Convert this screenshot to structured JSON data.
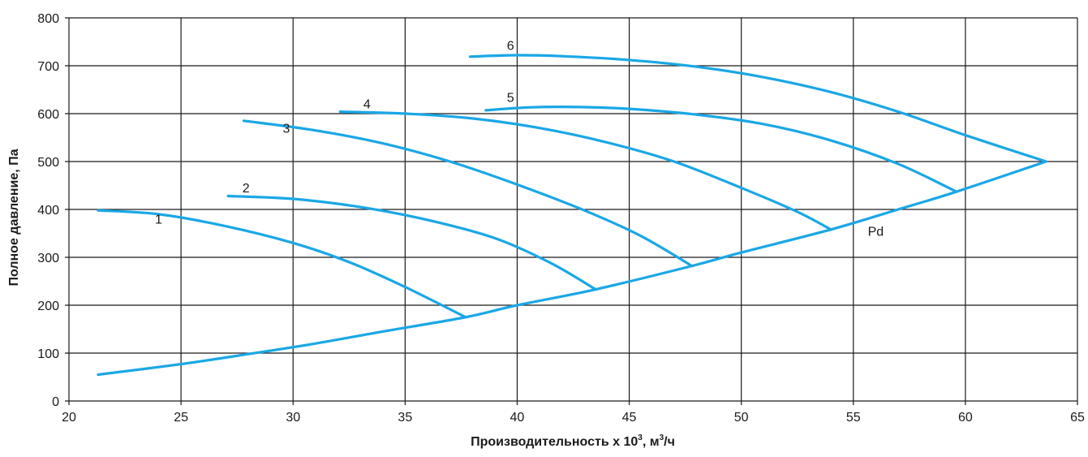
{
  "chart_data": {
    "type": "line",
    "xlabel": {
      "prefix": "Производительность х 10",
      "superscript": "3",
      "suffix_before_sup": ", м",
      "superscript2": "3",
      "suffix": "/ч"
    },
    "ylabel": "Полное давление, Па",
    "xlim": [
      20,
      65
    ],
    "ylim": [
      0,
      800
    ],
    "x_ticks": [
      "20",
      "25",
      "30",
      "35",
      "40",
      "45",
      "50",
      "55",
      "60",
      "65"
    ],
    "y_ticks": [
      "0",
      "100",
      "200",
      "300",
      "400",
      "500",
      "600",
      "700",
      "800"
    ],
    "grid": true,
    "line_color": "#1aa7e6",
    "series": [
      {
        "name": "1",
        "x": [
          21.3,
          24.0,
          27.0,
          30.0,
          32.5,
          35.0,
          37.7
        ],
        "y": [
          398,
          390,
          365,
          330,
          290,
          238,
          175
        ]
      },
      {
        "name": "2",
        "x": [
          27.1,
          30.0,
          33.0,
          36.0,
          39.0,
          41.5,
          43.5
        ],
        "y": [
          428,
          422,
          405,
          378,
          340,
          288,
          233
        ]
      },
      {
        "name": "3",
        "x": [
          27.8,
          31.0,
          34.0,
          37.0,
          40.0,
          43.0,
          45.5,
          47.8
        ],
        "y": [
          585,
          565,
          538,
          500,
          452,
          398,
          345,
          282
        ]
      },
      {
        "name": "4",
        "x": [
          32.1,
          35.0,
          38.0,
          41.0,
          44.0,
          47.0,
          50.0,
          52.5,
          54.0
        ],
        "y": [
          604,
          600,
          590,
          570,
          540,
          500,
          445,
          395,
          358
        ]
      },
      {
        "name": "5",
        "x": [
          38.6,
          40.5,
          42.5,
          45.0,
          48.0,
          51.0,
          54.0,
          57.0,
          59.6
        ],
        "y": [
          607,
          613,
          614,
          610,
          598,
          578,
          544,
          495,
          437
        ]
      },
      {
        "name": "6",
        "x": [
          37.9,
          40.0,
          42.0,
          45.0,
          48.0,
          51.0,
          54.0,
          57.0,
          60.0,
          63.6
        ],
        "y": [
          719,
          722,
          720,
          712,
          698,
          676,
          645,
          604,
          555,
          500
        ]
      },
      {
        "name": "Pd",
        "x": [
          21.3,
          25.0,
          28.0,
          31.0,
          34.0,
          37.7,
          40.0,
          43.5,
          47.8,
          50.0,
          54.0,
          57.0,
          59.6,
          63.6
        ],
        "y": [
          55,
          77,
          98,
          120,
          145,
          175,
          200,
          233,
          282,
          310,
          358,
          400,
          437,
          500
        ]
      }
    ],
    "curve_labels": [
      {
        "text": "1",
        "x": 24.0,
        "y": 370
      },
      {
        "text": "2",
        "x": 27.9,
        "y": 436
      },
      {
        "text": "3",
        "x": 29.7,
        "y": 560
      },
      {
        "text": "4",
        "x": 33.3,
        "y": 611
      },
      {
        "text": "5",
        "x": 39.7,
        "y": 625
      },
      {
        "text": "6",
        "x": 39.7,
        "y": 733
      },
      {
        "text": "Pd",
        "x": 56.0,
        "y": 345
      }
    ]
  }
}
